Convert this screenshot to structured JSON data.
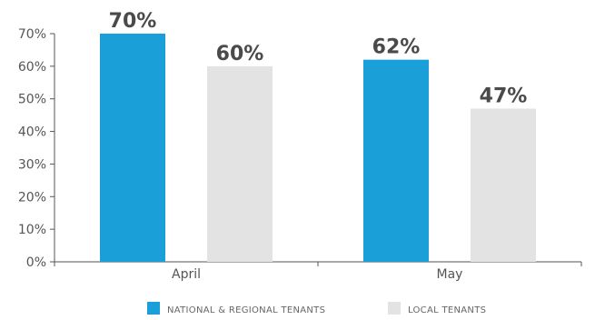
{
  "chart_data": {
    "type": "bar",
    "categories": [
      "April",
      "May"
    ],
    "series": [
      {
        "name": "NATIONAL & REGIONAL TENANTS",
        "values": [
          70,
          62
        ],
        "labels": [
          "70%",
          "62%"
        ],
        "color": "#1a9fd9"
      },
      {
        "name": "LOCAL TENANTS",
        "values": [
          60,
          47
        ],
        "labels": [
          "60%",
          "47%"
        ],
        "color": "#e3e3e3"
      }
    ],
    "ylim": [
      0,
      70
    ],
    "yticks": [
      0,
      10,
      20,
      30,
      40,
      50,
      60,
      70
    ],
    "ytick_labels": [
      "0%",
      "10%",
      "20%",
      "30%",
      "40%",
      "50%",
      "60%",
      "70%"
    ],
    "grid": false,
    "legend_position": "bottom",
    "title": "",
    "xlabel": "",
    "ylabel": ""
  }
}
